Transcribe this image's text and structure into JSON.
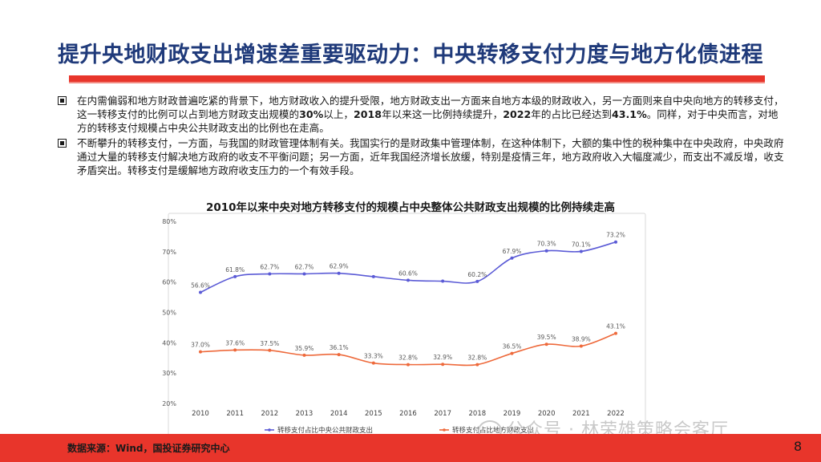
{
  "header": {
    "title": "提升央地财政支出增速差重要驱动力：中央转移支付力度与地方化债进程"
  },
  "bullets": [
    {
      "before": "在内需偏弱和地方财政普遍吃紧的背景下，地方财政收入的提升受限，地方财政支出一方面来自地方本级的财政收入，另一方面则来自中央向地方的转移支付，这一转移支付的比例可以占到地方财政支出规模的",
      "bold1": "30%",
      "middle": "以上，",
      "bold2": "2018",
      "middle2": "年以来这一比例持续提升，",
      "bold3": "2022",
      "middle3": "年的占比已经达到",
      "bold4": "43.1%",
      "after": "。同样，对于中央而言，对地方的转移支付规模占中央公共财政支出的比例也在走高。"
    },
    {
      "text": "不断攀升的转移支付，一方面，与我国的财政管理体制有关。我国实行的是财政集中管理体制，在这种体制下，大额的集中性的税种集中在中央政府，中央政府通过大量的转移支付解决地方政府的收支不平衡问题；另一方面，近年我国经济增长放缓，特别是疫情三年，地方政府收入大幅度减少，而支出不减反增，收支矛盾突出。转移支付是缓解地方政府收支压力的一个有效手段。"
    }
  ],
  "chart_data": {
    "type": "line",
    "title": "2010年以来中央对地方转移支付的规模占中央整体公共财政支出规模的比例持续走高",
    "categories": [
      "2010",
      "2011",
      "2012",
      "2013",
      "2014",
      "2015",
      "2016",
      "2017",
      "2018",
      "2019",
      "2020",
      "2021",
      "2022"
    ],
    "y_ticks": [
      "20%",
      "30%",
      "40%",
      "50%",
      "60%",
      "70%",
      "80%"
    ],
    "ylim": [
      20,
      80
    ],
    "grid": false,
    "legend_position": "bottom",
    "series": [
      {
        "name": "转移支付占比中央公共财政支出",
        "color": "#5b5bd6",
        "labels": {
          "2010": "56.6%",
          "2011": "61.8%",
          "2012": "62.7%",
          "2013": "62.7%",
          "2014": "62.9%",
          "2016": "60.6%",
          "2018": "60.2%",
          "2019": "67.9%",
          "2020": "70.3%",
          "2021": "70.1%",
          "2022": "73.2%"
        },
        "values": [
          56.6,
          61.8,
          62.7,
          62.7,
          62.9,
          61.8,
          60.6,
          60.3,
          60.2,
          67.9,
          70.3,
          70.1,
          73.2
        ]
      },
      {
        "name": "转移支付占比地方财政支出",
        "color": "#ee6a3c",
        "labels": {
          "2010": "37.0%",
          "2011": "37.6%",
          "2012": "37.5%",
          "2013": "35.9%",
          "2014": "36.1%",
          "2015": "33.3%",
          "2016": "32.8%",
          "2017": "32.9%",
          "2018": "32.8%",
          "2019": "36.5%",
          "2020": "39.5%",
          "2021": "38.9%",
          "2022": "43.1%"
        },
        "values": [
          37.0,
          37.6,
          37.5,
          35.9,
          36.1,
          33.3,
          32.8,
          32.9,
          32.8,
          36.5,
          39.5,
          38.9,
          43.1
        ]
      }
    ]
  },
  "footer": {
    "source": "数据来源：Wind，国投证券研究中心",
    "page_number": "8",
    "watermark": "公众号 · 林荣雄策略会客厅"
  },
  "colors": {
    "accent_red": "#e8352b",
    "title_blue": "#1f3a7a"
  }
}
